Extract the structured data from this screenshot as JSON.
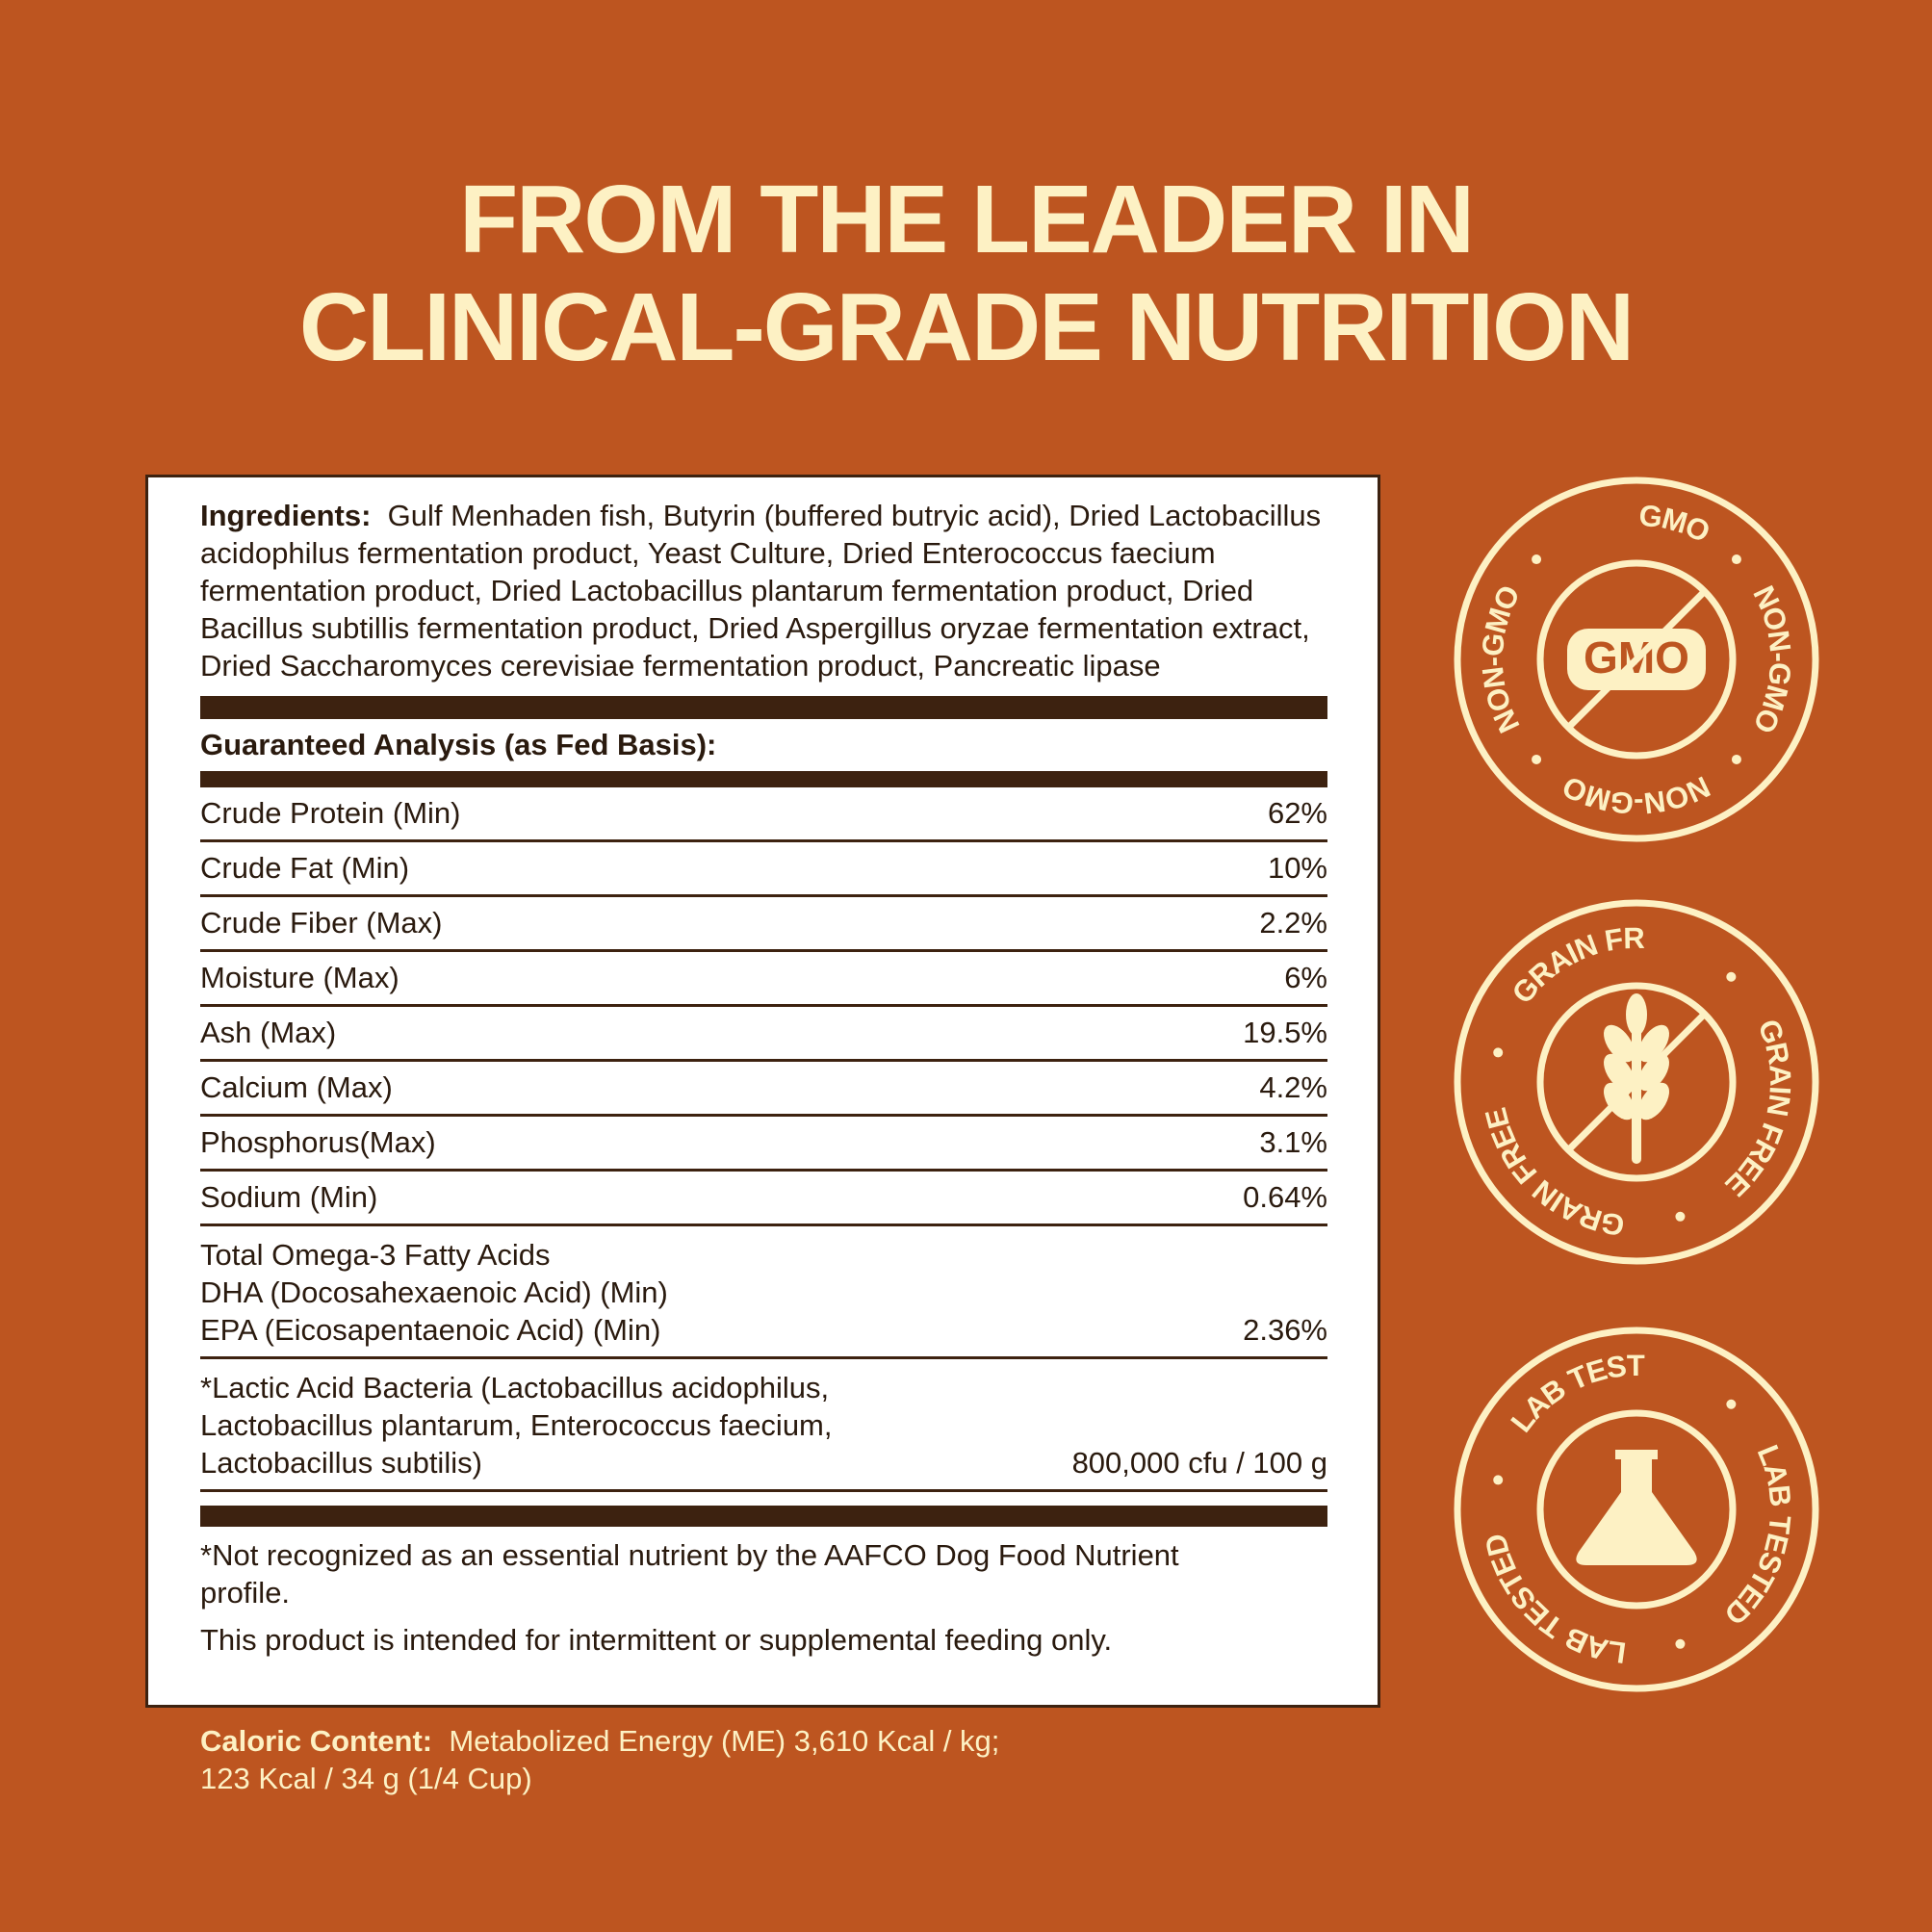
{
  "header": {
    "title": [
      "FROM THE LEADER IN",
      "CLINICAL-GRADE NUTRITION"
    ]
  },
  "ingredients": {
    "label": "Ingredients:",
    "text": "Gulf Menhaden fish, Butyrin (buffered butryic acid), Dried Lactobacillus acidophilus fermentation product, Yeast Culture, Dried Enterococcus faecium fermentation product, Dried Lactobacillus plantarum fermentation product, Dried Bacillus subtillis fermentation product, Dried Aspergillus oryzae fermentation extract, Dried Saccharomyces cerevisiae fermentation product, Pancreatic lipase"
  },
  "analysis": {
    "heading": "Guaranteed Analysis (as Fed Basis):",
    "rows": [
      {
        "name": [
          "Crude Protein (Min)"
        ],
        "value": "62%"
      },
      {
        "name": [
          "Crude Fat (Min)"
        ],
        "value": "10%"
      },
      {
        "name": [
          "Crude Fiber (Max)"
        ],
        "value": "2.2%"
      },
      {
        "name": [
          "Moisture (Max)"
        ],
        "value": "6%"
      },
      {
        "name": [
          "Ash (Max)"
        ],
        "value": "19.5%"
      },
      {
        "name": [
          "Calcium (Max)"
        ],
        "value": "4.2%"
      },
      {
        "name": [
          "Phosphorus(Max)"
        ],
        "value": "3.1%"
      },
      {
        "name": [
          "Sodium (Min)"
        ],
        "value": "0.64%"
      },
      {
        "name": [
          "Total Omega-3 Fatty Acids",
          "DHA (Docosahexaenoic Acid) (Min)",
          "EPA (Eicosapentaenoic Acid) (Min)"
        ],
        "value": "2.36%"
      },
      {
        "name": [
          "*Lactic Acid Bacteria (Lactobacillus acidophilus,",
          "Lactobacillus plantarum, Enterococcus faecium,",
          "Lactobacillus subtilis)"
        ],
        "value": "800,000 cfu / 100 g"
      }
    ]
  },
  "notes": [
    "*Not recognized as an essential nutrient by the AAFCO Dog Food Nutrient profile.",
    "This product is intended for intermittent or supplemental feeding only."
  ],
  "caloric": {
    "label": "Caloric Content:",
    "lines": [
      "Metabolized Energy (ME) 3,610 Kcal / kg;",
      "123 Kcal / 34 g (1/4 Cup)"
    ]
  },
  "badges": [
    {
      "ring_text": "NON-GMO",
      "center_text": "GMO"
    },
    {
      "ring_text": "GRAIN FREE"
    },
    {
      "ring_text": "LAB TESTED"
    }
  ]
}
